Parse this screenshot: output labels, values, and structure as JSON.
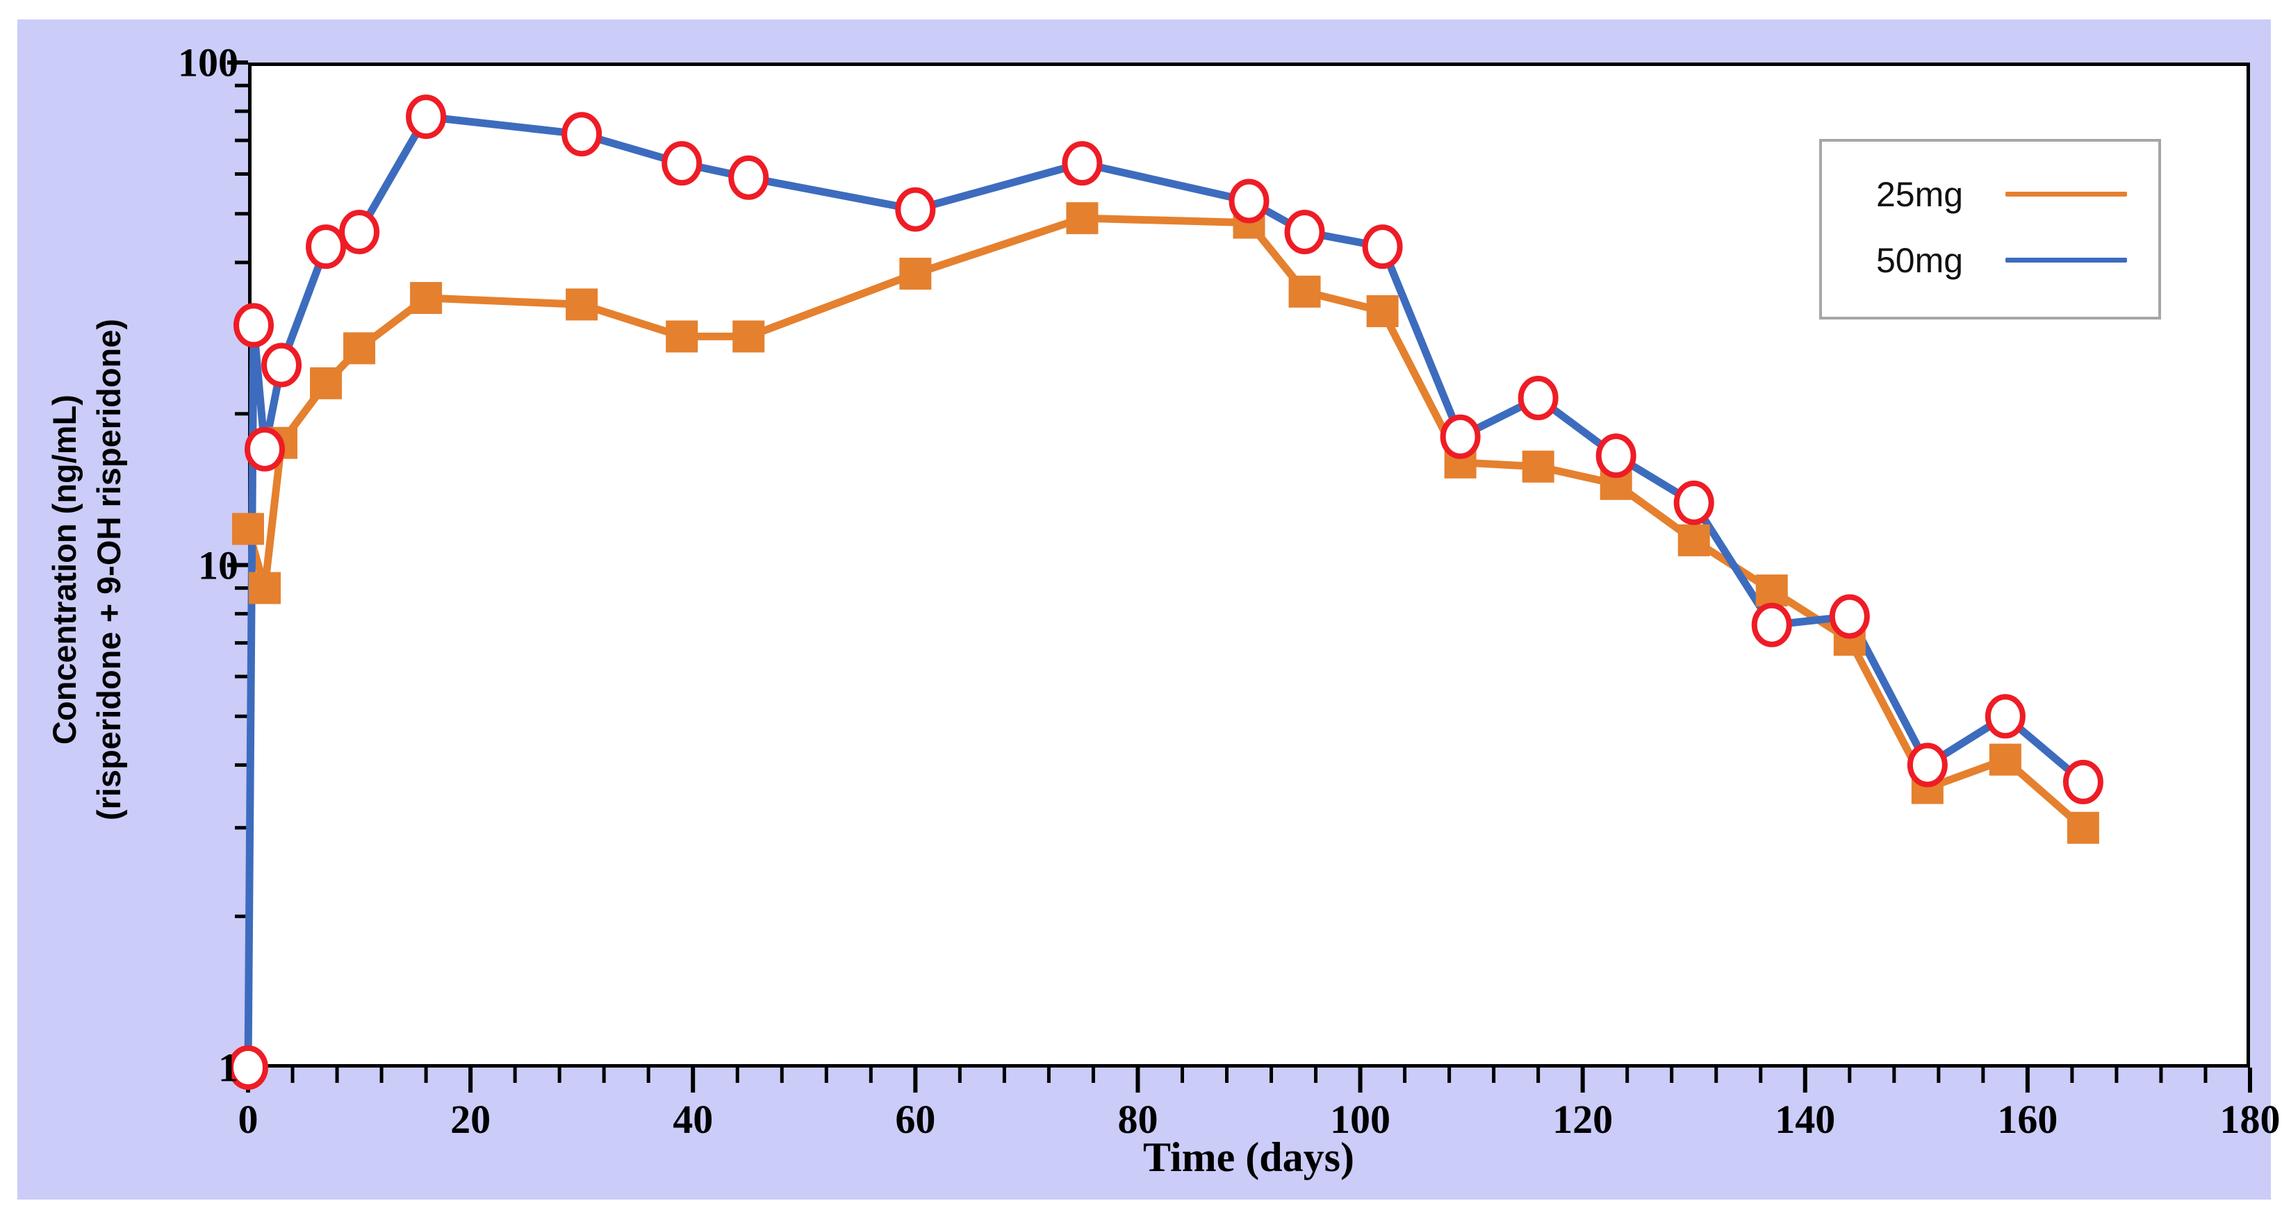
{
  "figure": {
    "panel_color": "#cbccf8",
    "plot_background": "#ffffff",
    "axis_color": "#000000",
    "legend_border_color": "#a6a6a6"
  },
  "chart_data": {
    "type": "line",
    "title": "",
    "xlabel": "Time (days)",
    "ylabel_line1": "Concentration (ng/mL)",
    "ylabel_line2": "(risperidone + 9-OH risperidone)",
    "x_axis": {
      "min": 0,
      "max": 180,
      "scale": "linear",
      "major_ticks": [
        0,
        20,
        40,
        60,
        80,
        100,
        120,
        140,
        160,
        180
      ],
      "minor_tick_step": 4
    },
    "y_axis": {
      "min": 1,
      "max": 100,
      "scale": "log",
      "major_ticks": [
        1,
        10,
        100
      ],
      "minor_ticks": [
        2,
        3,
        4,
        5,
        6,
        7,
        8,
        9,
        20,
        30,
        40,
        50,
        60,
        70,
        80,
        90
      ]
    },
    "grid": "off",
    "legend_position": "top-right",
    "series": [
      {
        "name": "25mg",
        "color": "#e5802e",
        "marker": "square",
        "marker_color": "#e5802e",
        "x": [
          0,
          1.5,
          3,
          7,
          10,
          16,
          30,
          39,
          45,
          60,
          75,
          90,
          95,
          102,
          109,
          116,
          123,
          130,
          137,
          144,
          151,
          158,
          165
        ],
        "y": [
          11.8,
          9.0,
          17.5,
          23,
          27,
          34,
          33,
          28.5,
          28.5,
          38,
          49,
          48,
          35,
          32,
          16,
          15.7,
          14.5,
          11.2,
          8.9,
          7.1,
          3.6,
          4.1,
          3.0
        ]
      },
      {
        "name": "50mg",
        "color": "#3d6cbe",
        "marker": "circle-open",
        "marker_color": "#ee1c25",
        "x": [
          0,
          0.5,
          1.5,
          3,
          7,
          10,
          16,
          30,
          39,
          45,
          60,
          75,
          90,
          95,
          102,
          109,
          116,
          123,
          130,
          137,
          144,
          151,
          158,
          165
        ],
        "y": [
          1,
          30,
          17,
          25,
          43,
          46,
          78,
          72,
          63,
          59,
          51,
          63,
          53,
          46,
          43,
          18,
          21.5,
          16.5,
          13.3,
          7.6,
          7.9,
          4.0,
          5.0,
          3.7
        ]
      }
    ]
  }
}
